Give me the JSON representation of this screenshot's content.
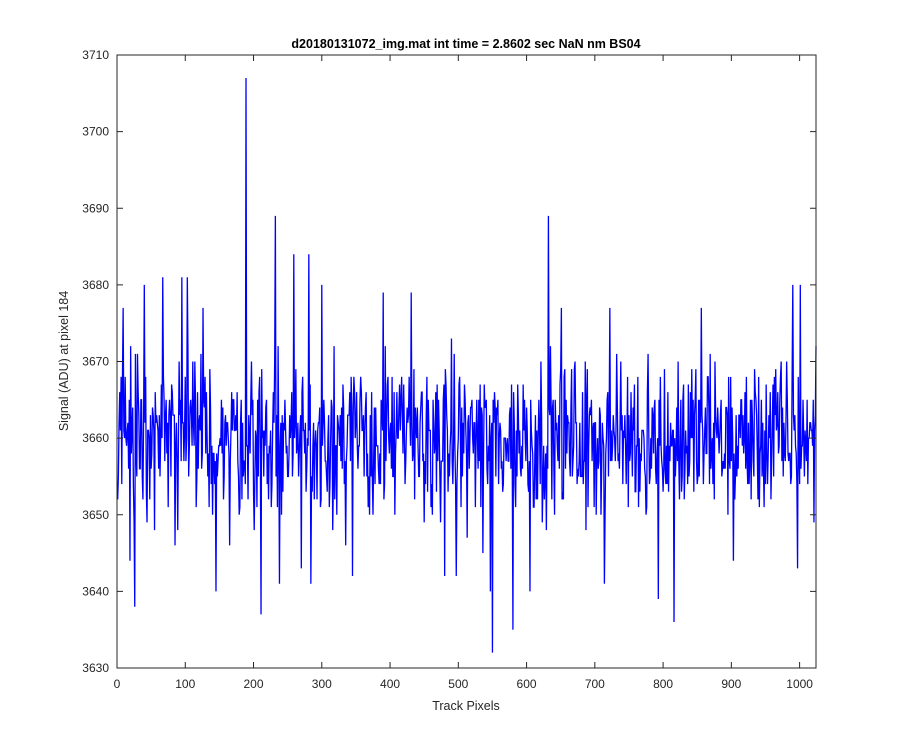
{
  "chart_data": {
    "type": "line",
    "title": "d20180131072_img.mat int time = 2.8602 sec  NaN nm BS04",
    "xlabel": "Track Pixels",
    "ylabel": "Signal (ADU) at pixel 184",
    "xlim": [
      0,
      1024
    ],
    "ylim": [
      3630,
      3710
    ],
    "xticks": [
      0,
      100,
      200,
      300,
      400,
      500,
      600,
      700,
      800,
      900,
      1000
    ],
    "yticks": [
      3630,
      3640,
      3650,
      3660,
      3670,
      3680,
      3690,
      3700,
      3710
    ],
    "grid": false,
    "line_color": "#0000ff",
    "n_points": 1024,
    "anchor_points": [
      {
        "x": 1,
        "y": 3652
      },
      {
        "x": 9,
        "y": 3677
      },
      {
        "x": 19,
        "y": 3644
      },
      {
        "x": 26,
        "y": 3638
      },
      {
        "x": 40,
        "y": 3680
      },
      {
        "x": 55,
        "y": 3648
      },
      {
        "x": 67,
        "y": 3681
      },
      {
        "x": 85,
        "y": 3646
      },
      {
        "x": 95,
        "y": 3681
      },
      {
        "x": 103,
        "y": 3681
      },
      {
        "x": 126,
        "y": 3677
      },
      {
        "x": 145,
        "y": 3640
      },
      {
        "x": 165,
        "y": 3646
      },
      {
        "x": 189,
        "y": 3707
      },
      {
        "x": 211,
        "y": 3637
      },
      {
        "x": 232,
        "y": 3689
      },
      {
        "x": 238,
        "y": 3641
      },
      {
        "x": 259,
        "y": 3684
      },
      {
        "x": 270,
        "y": 3643
      },
      {
        "x": 281,
        "y": 3684
      },
      {
        "x": 284,
        "y": 3641
      },
      {
        "x": 300,
        "y": 3680
      },
      {
        "x": 318,
        "y": 3672
      },
      {
        "x": 335,
        "y": 3646
      },
      {
        "x": 345,
        "y": 3642
      },
      {
        "x": 370,
        "y": 3650
      },
      {
        "x": 390,
        "y": 3679
      },
      {
        "x": 431,
        "y": 3679
      },
      {
        "x": 450,
        "y": 3649
      },
      {
        "x": 480,
        "y": 3642
      },
      {
        "x": 497,
        "y": 3642
      },
      {
        "x": 536,
        "y": 3645
      },
      {
        "x": 547,
        "y": 3640
      },
      {
        "x": 550,
        "y": 3632
      },
      {
        "x": 580,
        "y": 3635
      },
      {
        "x": 605,
        "y": 3640
      },
      {
        "x": 632,
        "y": 3689
      },
      {
        "x": 651,
        "y": 3677
      },
      {
        "x": 687,
        "y": 3648
      },
      {
        "x": 714,
        "y": 3641
      },
      {
        "x": 722,
        "y": 3677
      },
      {
        "x": 778,
        "y": 3671
      },
      {
        "x": 793,
        "y": 3639
      },
      {
        "x": 816,
        "y": 3636
      },
      {
        "x": 856,
        "y": 3677
      },
      {
        "x": 903,
        "y": 3644
      },
      {
        "x": 963,
        "y": 3668
      },
      {
        "x": 990,
        "y": 3680
      },
      {
        "x": 997,
        "y": 3643
      },
      {
        "x": 1001,
        "y": 3680
      },
      {
        "x": 1021,
        "y": 3649
      },
      {
        "x": 1024,
        "y": 3672
      }
    ],
    "baseline_mean": 3660,
    "baseline_range": [
      3646,
      3674
    ]
  }
}
